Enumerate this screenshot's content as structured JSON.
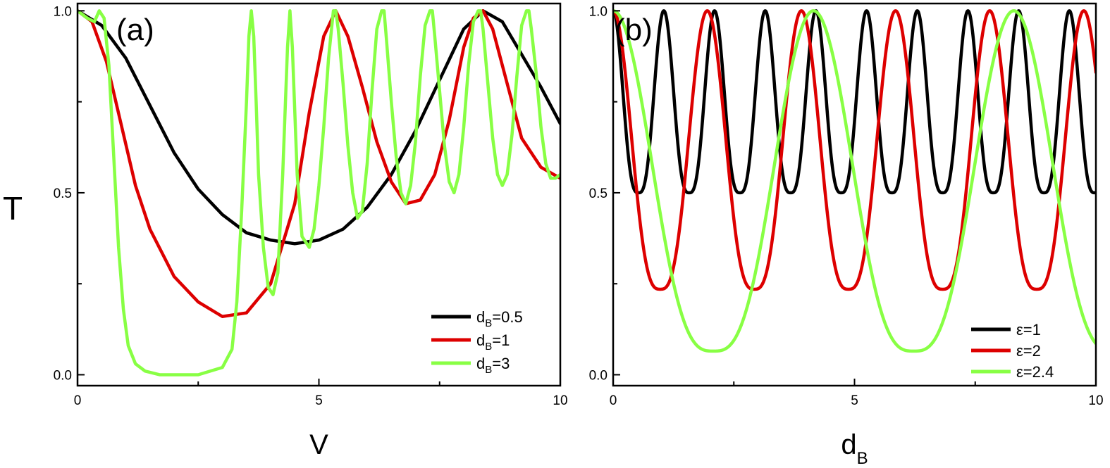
{
  "ylabel": "T",
  "chart_data": [
    {
      "type": "line",
      "panel_label": "(a)",
      "xlabel": "V",
      "xlabel_sub": "",
      "ylabel": "T",
      "xlim": [
        0,
        10
      ],
      "ylim": [
        -0.03,
        1.02
      ],
      "xticks": [
        0,
        5,
        10
      ],
      "yticks": [
        0.0,
        0.5,
        1.0
      ],
      "xtick_labels": [
        "0",
        "5",
        "10"
      ],
      "ytick_labels": [
        "0.0",
        "0.5",
        "1.0"
      ],
      "grid": false,
      "legend_position": "bottom-right",
      "series": [
        {
          "legend_main": "d",
          "legend_sub": "B",
          "legend_rest": "=0.5",
          "color": "#000000",
          "x": [
            0,
            0.5,
            1,
            1.5,
            2,
            2.5,
            3,
            3.5,
            4,
            4.5,
            5,
            5.5,
            6,
            6.5,
            7,
            7.5,
            8,
            8.4,
            8.8,
            9.2,
            9.6,
            10
          ],
          "y": [
            1.0,
            0.96,
            0.87,
            0.74,
            0.61,
            0.51,
            0.44,
            0.39,
            0.37,
            0.36,
            0.37,
            0.4,
            0.46,
            0.55,
            0.67,
            0.81,
            0.95,
            1.0,
            0.97,
            0.88,
            0.79,
            0.69
          ]
        },
        {
          "legend_main": "d",
          "legend_sub": "B",
          "legend_rest": "=1",
          "color": "#dd0000",
          "x": [
            0,
            0.3,
            0.6,
            0.9,
            1.2,
            1.5,
            2,
            2.5,
            3,
            3.5,
            4,
            4.5,
            4.8,
            5.1,
            5.35,
            5.6,
            5.9,
            6.2,
            6.5,
            6.8,
            7.1,
            7.4,
            7.7,
            8.0,
            8.2,
            8.4,
            8.6,
            8.9,
            9.2,
            9.6,
            10
          ],
          "y": [
            1.0,
            0.97,
            0.86,
            0.69,
            0.52,
            0.4,
            0.27,
            0.2,
            0.16,
            0.17,
            0.25,
            0.47,
            0.72,
            0.93,
            1.0,
            0.93,
            0.79,
            0.64,
            0.53,
            0.47,
            0.48,
            0.55,
            0.7,
            0.9,
            0.98,
            1.0,
            0.95,
            0.8,
            0.65,
            0.57,
            0.54
          ]
        },
        {
          "legend_main": "d",
          "legend_sub": "B",
          "legend_rest": "=3",
          "color": "#88ff44",
          "x": [
            0,
            0.2,
            0.35,
            0.45,
            0.55,
            0.65,
            0.75,
            0.85,
            0.95,
            1.05,
            1.2,
            1.4,
            1.7,
            2.0,
            2.5,
            3.0,
            3.2,
            3.3,
            3.4,
            3.5,
            3.55,
            3.6,
            3.65,
            3.7,
            3.75,
            3.85,
            3.95,
            4.05,
            4.15,
            4.25,
            4.35,
            4.4,
            4.45,
            4.55,
            4.65,
            4.8,
            4.9,
            5.0,
            5.1,
            5.2,
            5.3,
            5.35,
            5.4,
            5.5,
            5.6,
            5.7,
            5.8,
            5.9,
            6.0,
            6.1,
            6.2,
            6.3,
            6.35,
            6.4,
            6.5,
            6.6,
            6.7,
            6.8,
            6.9,
            7.0,
            7.1,
            7.2,
            7.3,
            7.35,
            7.4,
            7.5,
            7.6,
            7.7,
            7.8,
            7.9,
            8.0,
            8.1,
            8.2,
            8.3,
            8.35,
            8.4,
            8.5,
            8.6,
            8.7,
            8.8,
            8.9,
            9.0,
            9.1,
            9.2,
            9.3,
            9.35,
            9.4,
            9.5,
            9.6,
            9.7,
            9.8,
            9.9,
            10
          ],
          "y": [
            1.0,
            0.98,
            0.97,
            1.0,
            0.98,
            0.85,
            0.6,
            0.35,
            0.18,
            0.08,
            0.03,
            0.01,
            0.0,
            0.0,
            0.0,
            0.02,
            0.07,
            0.2,
            0.45,
            0.75,
            0.93,
            1.0,
            0.93,
            0.75,
            0.55,
            0.35,
            0.24,
            0.22,
            0.28,
            0.55,
            0.9,
            1.0,
            0.9,
            0.55,
            0.38,
            0.35,
            0.4,
            0.52,
            0.68,
            0.87,
            1.0,
            1.0,
            0.95,
            0.8,
            0.63,
            0.5,
            0.43,
            0.45,
            0.58,
            0.78,
            0.95,
            1.0,
            1.0,
            0.92,
            0.75,
            0.6,
            0.5,
            0.47,
            0.52,
            0.64,
            0.82,
            0.96,
            1.0,
            1.0,
            0.93,
            0.78,
            0.63,
            0.53,
            0.5,
            0.55,
            0.68,
            0.85,
            0.97,
            1.0,
            1.0,
            0.95,
            0.8,
            0.65,
            0.55,
            0.52,
            0.55,
            0.66,
            0.82,
            0.96,
            1.0,
            1.0,
            0.95,
            0.83,
            0.68,
            0.58,
            0.54,
            0.54,
            0.55
          ]
        }
      ]
    },
    {
      "type": "line",
      "panel_label": "(b)",
      "xlabel": "d",
      "xlabel_sub": "B",
      "ylabel": "T",
      "xlim": [
        0,
        10
      ],
      "ylim": [
        -0.03,
        1.02
      ],
      "xticks": [
        0,
        5,
        10
      ],
      "yticks": [
        0.0,
        0.5,
        1.0
      ],
      "xtick_labels": [
        "0",
        "5",
        "10"
      ],
      "ytick_labels": [
        "0.0",
        "0.5",
        "1.0"
      ],
      "grid": false,
      "legend_position": "bottom-right",
      "series": [
        {
          "legend_main": "ε=1",
          "legend_sub": "",
          "legend_rest": "",
          "color": "#000000",
          "model": "periodic",
          "period": 1.05,
          "first_peak": 0.0,
          "min": 0.5,
          "sharpness": 3.0
        },
        {
          "legend_main": "ε=2",
          "legend_sub": "",
          "legend_rest": "",
          "color": "#dd0000",
          "model": "periodic",
          "period": 1.95,
          "first_peak": 0.0,
          "min": 0.235,
          "sharpness": 3.0
        },
        {
          "legend_main": "ε=2.4",
          "legend_sub": "",
          "legend_rest": "",
          "color": "#88ff44",
          "model": "periodic",
          "period": 4.15,
          "first_peak": 0.0,
          "min": 0.065,
          "sharpness": 3.0
        }
      ]
    }
  ]
}
